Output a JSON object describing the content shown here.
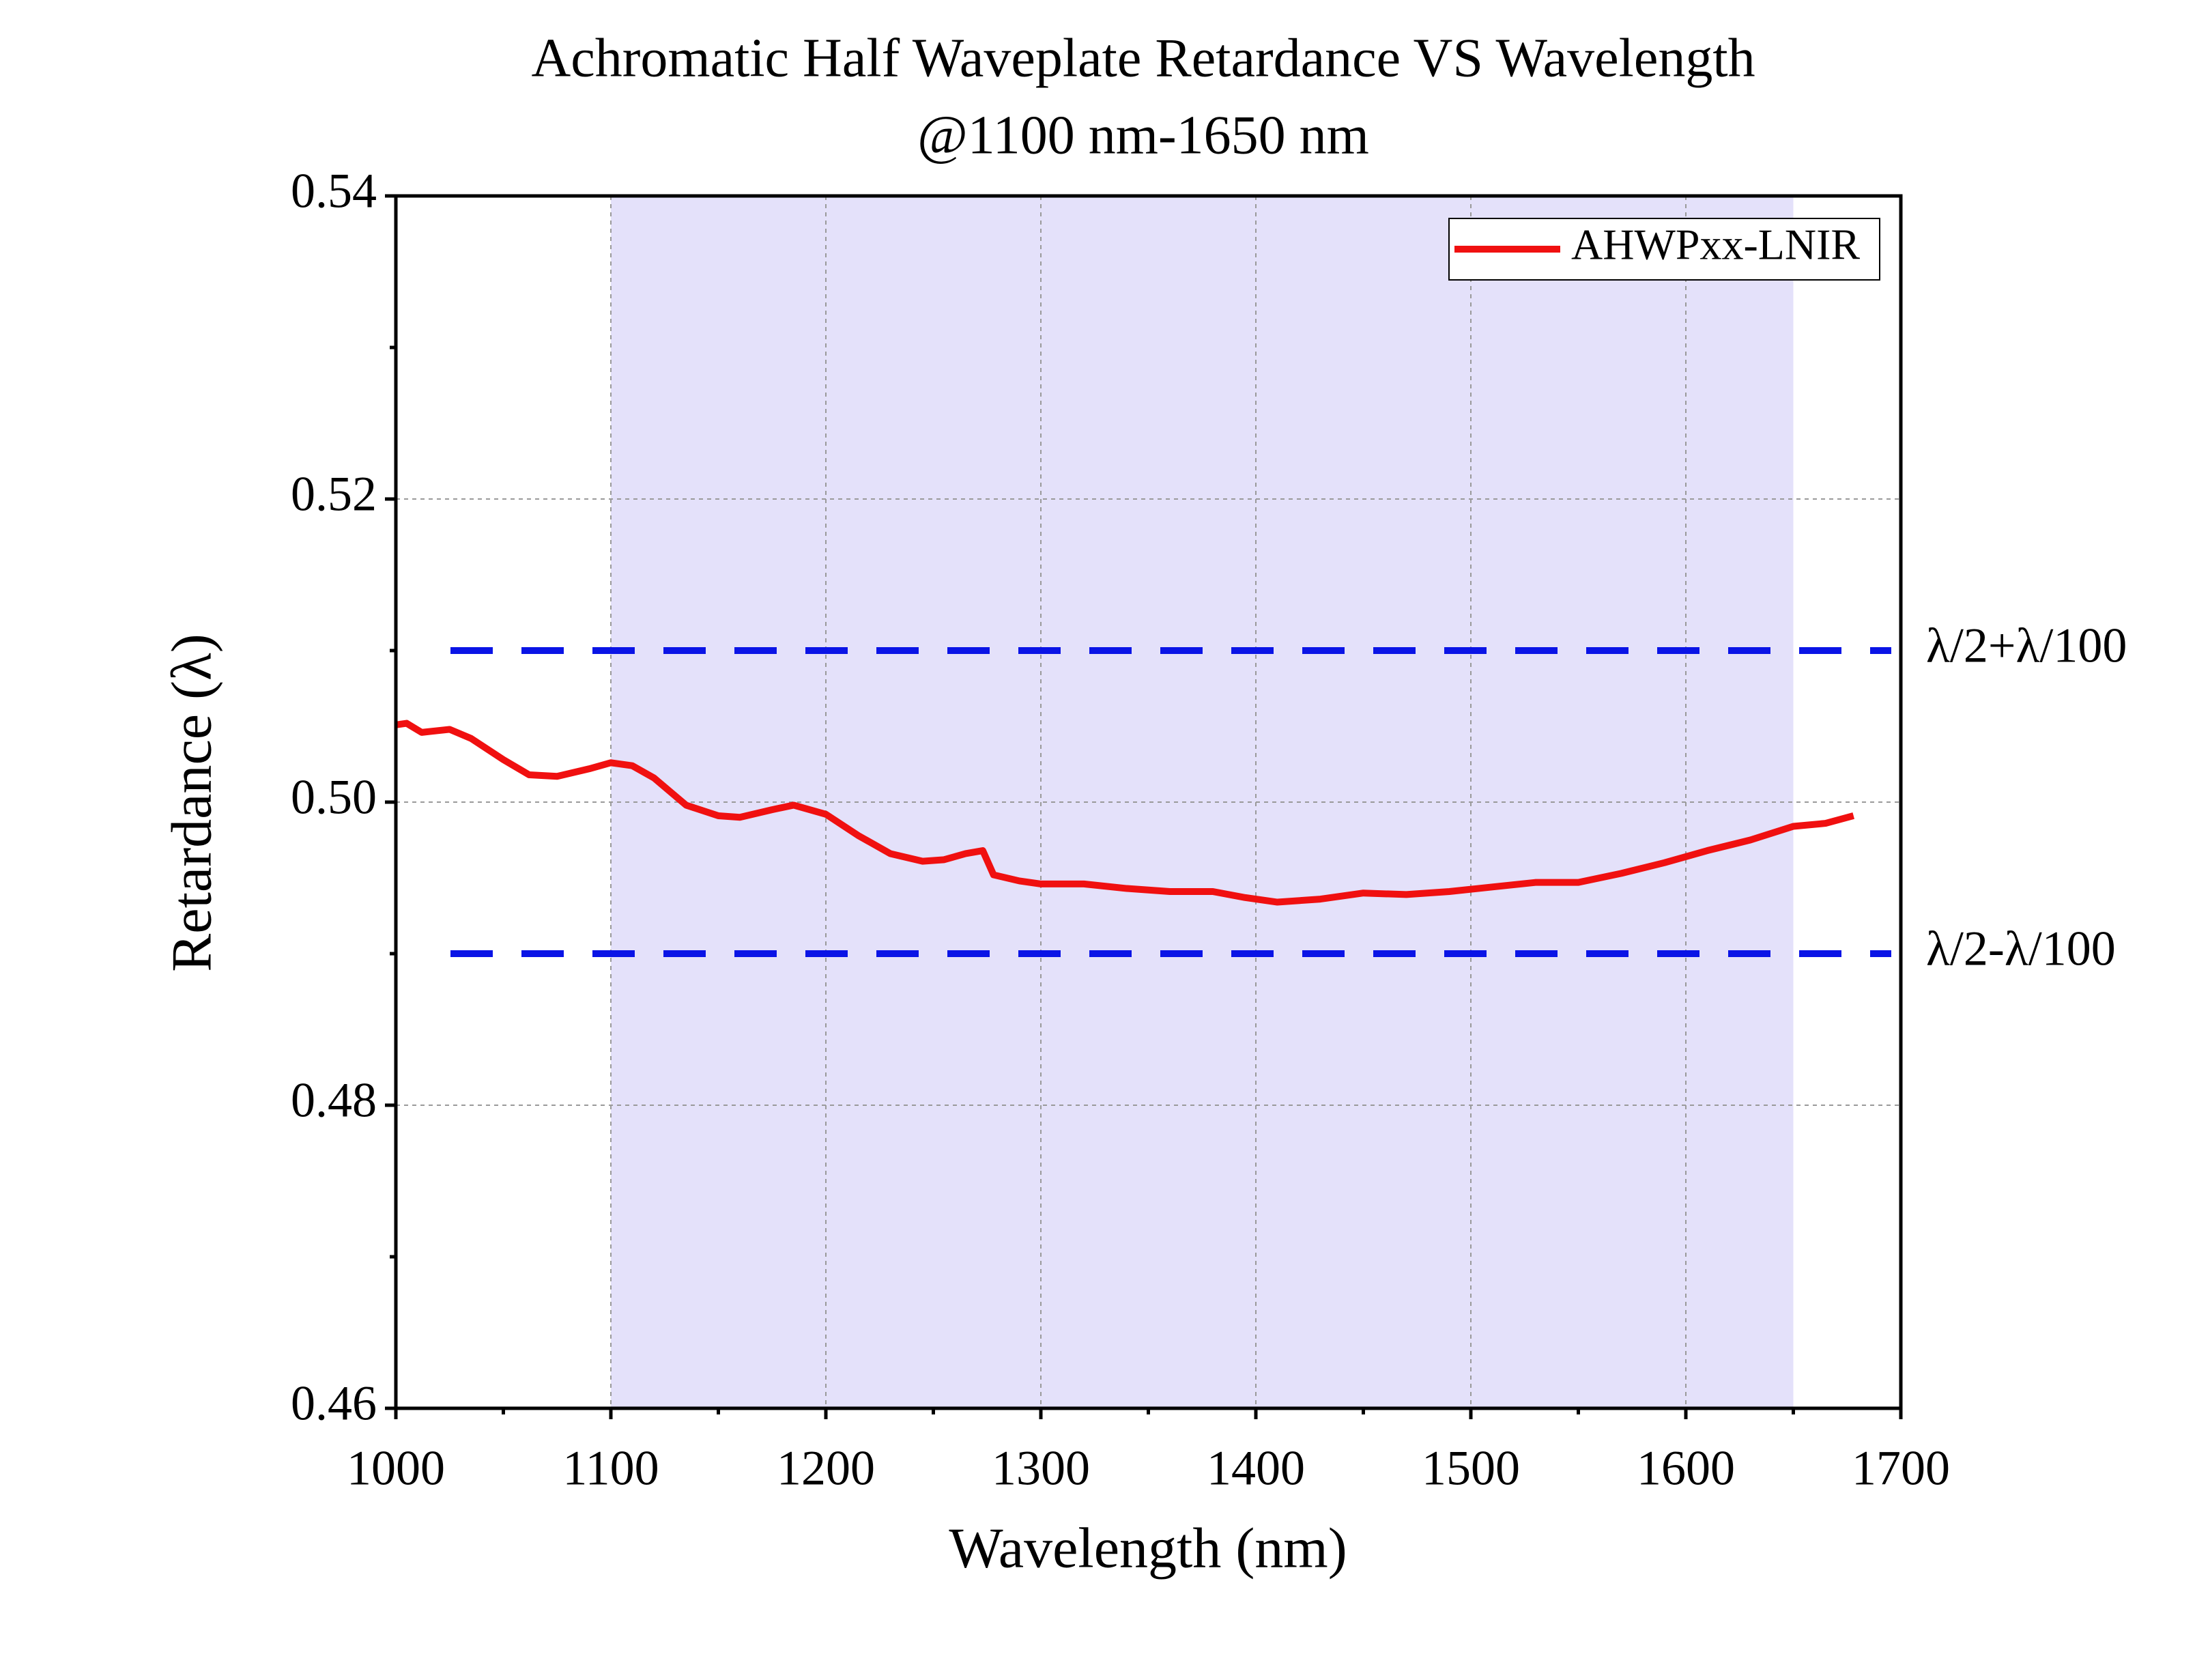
{
  "chart_data": {
    "type": "line",
    "title": "Achromatic Half Waveplate Retardance VS Wavelength",
    "subtitle": "@1100 nm-1650 nm",
    "x_label": "Wavelength (nm)",
    "y_label": "Retardance (λ)",
    "xlim": [
      1000,
      1700
    ],
    "ylim": [
      0.46,
      0.54
    ],
    "xticks": [
      1000,
      1100,
      1200,
      1300,
      1400,
      1500,
      1600,
      1700
    ],
    "yticks": [
      0.46,
      0.48,
      {
        "value": 0.5,
        "label": "0.50"
      },
      0.52,
      0.54
    ],
    "x_minor_ticks": [
      1050,
      1150,
      1250,
      1350,
      1450,
      1550,
      1650
    ],
    "y_minor_ticks": [
      0.47,
      0.49,
      0.51,
      0.53
    ],
    "grid": true,
    "legend_position": "upper right",
    "highlight_range": [
      1100,
      1650
    ],
    "highlight_color": "#e4e1fa",
    "reference_lines": [
      {
        "value": 0.51,
        "label": "λ/2+λ/100",
        "color": "#0a14e6"
      },
      {
        "value": 0.49,
        "label": "λ/2-λ/100",
        "color": "#0a14e6"
      }
    ],
    "x": [
      1000,
      1005,
      1012,
      1025,
      1035,
      1050,
      1062,
      1075,
      1090,
      1100,
      1110,
      1120,
      1135,
      1150,
      1160,
      1175,
      1185,
      1200,
      1215,
      1230,
      1245,
      1255,
      1265,
      1273,
      1278,
      1290,
      1300,
      1320,
      1340,
      1360,
      1380,
      1395,
      1410,
      1430,
      1450,
      1470,
      1490,
      1510,
      1530,
      1550,
      1570,
      1590,
      1610,
      1630,
      1650,
      1665,
      1678
    ],
    "series": [
      {
        "name": "AHWPxx-LNIR",
        "color": "#f01010",
        "values": [
          0.5051,
          0.5052,
          0.5046,
          0.5048,
          0.5042,
          0.5028,
          0.5018,
          0.5017,
          0.5022,
          0.5026,
          0.5024,
          0.5016,
          0.4998,
          0.4991,
          0.499,
          0.4995,
          0.4998,
          0.4992,
          0.4978,
          0.4966,
          0.4961,
          0.4962,
          0.4966,
          0.4968,
          0.4952,
          0.4948,
          0.4946,
          0.4946,
          0.4943,
          0.4941,
          0.4941,
          0.4937,
          0.4934,
          0.4936,
          0.494,
          0.4939,
          0.4941,
          0.4944,
          0.4947,
          0.4947,
          0.4953,
          0.496,
          0.4968,
          0.4975,
          0.4984,
          0.4986,
          0.4991
        ]
      }
    ]
  }
}
